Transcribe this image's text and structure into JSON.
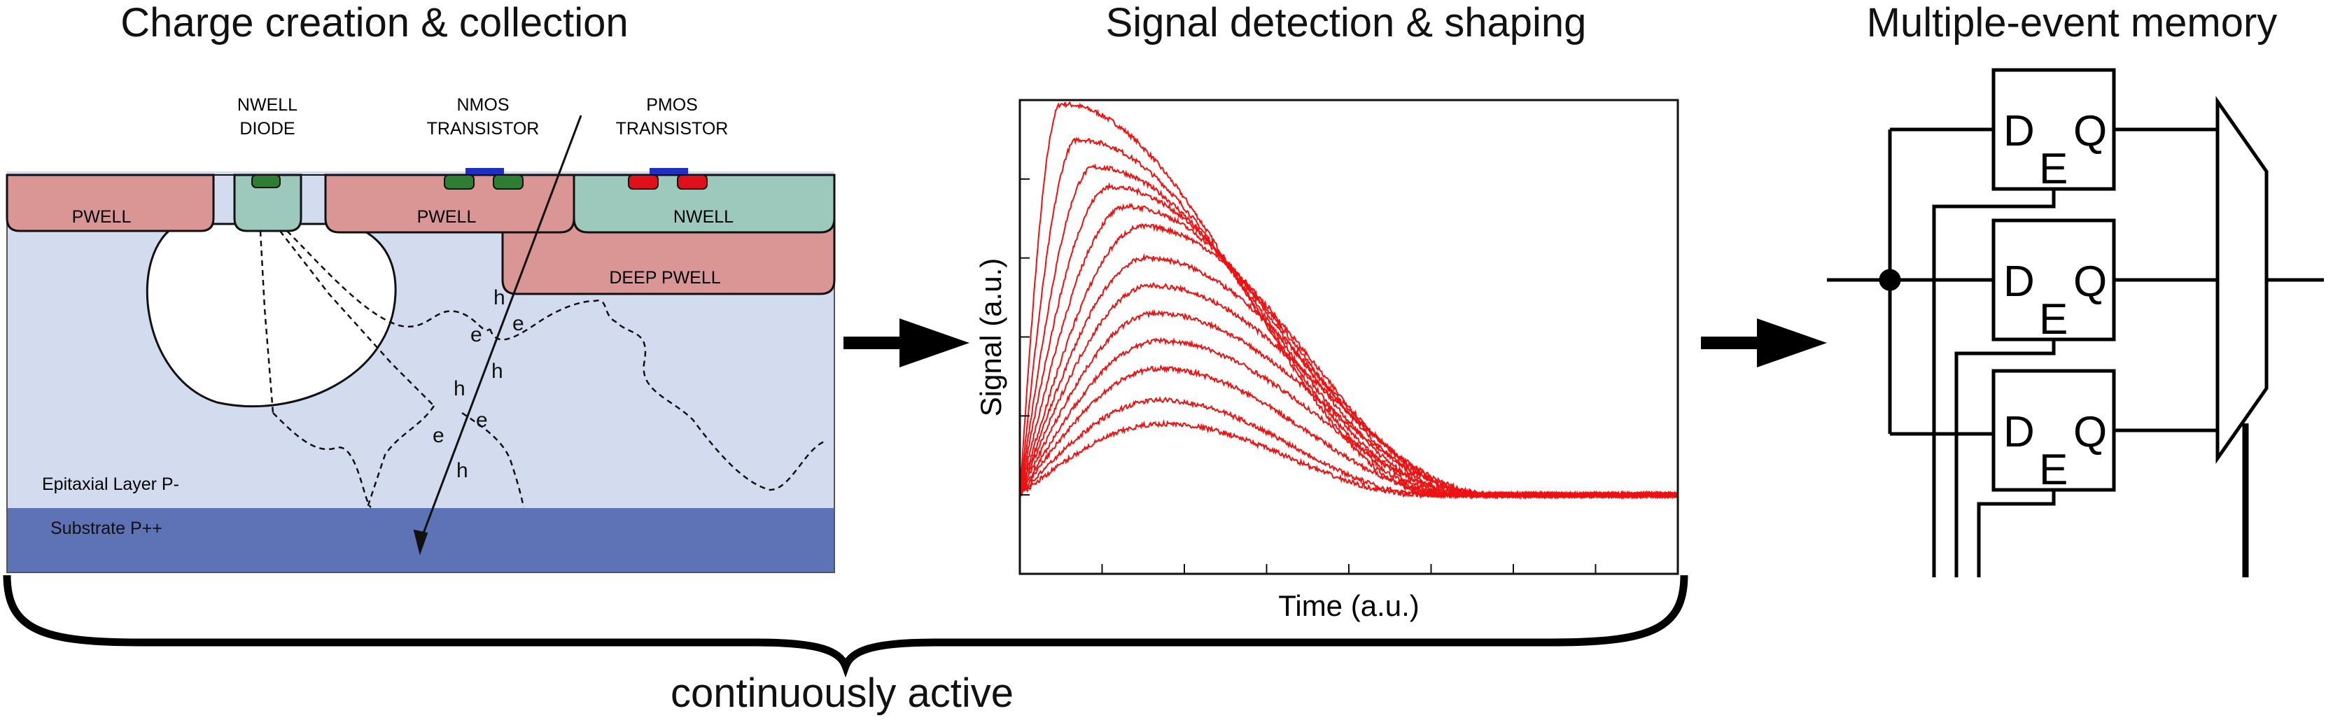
{
  "panels": {
    "charge": {
      "title": "Charge creation & collection",
      "labels": {
        "nwell_diode_1": "NWELL",
        "nwell_diode_2": "DIODE",
        "nmos_1": "NMOS",
        "nmos_2": "TRANSISTOR",
        "pmos_1": "PMOS",
        "pmos_2": "TRANSISTOR",
        "pwell_left": "PWELL",
        "pwell_mid": "PWELL",
        "nwell_right": "NWELL",
        "deep_pwell": "DEEP PWELL",
        "epi": "Epitaxial Layer P-",
        "substrate": "Substrate  P++"
      },
      "carriers": {
        "hole": "h",
        "electron": "e"
      }
    },
    "signal": {
      "title": "Signal detection & shaping",
      "ylabel": "Signal (a.u.)",
      "xlabel": "Time (a.u.)"
    },
    "memory": {
      "title": "Multiple-event memory",
      "ff_labels": {
        "d": "D",
        "q": "Q",
        "e": "E"
      }
    }
  },
  "caption": "continuously active",
  "colors": {
    "pwell": "#d99694",
    "nwell": "#9cc9bb",
    "epi": "#d3dbef",
    "substrate": "#5e72b6",
    "gate": "#1f2fbf",
    "nplus": "#2e7d32",
    "pplus": "#e0101a",
    "signal": "#ee1111"
  },
  "chart_data": {
    "type": "line",
    "title": "",
    "xlabel": "Time (a.u.)",
    "ylabel": "Signal (a.u.)",
    "xlim": [
      0,
      8
    ],
    "ylim": [
      0,
      1.2
    ],
    "series": [
      {
        "peak_time": 0.5,
        "amplitude": 1.19,
        "end_time": 5.1
      },
      {
        "peak_time": 0.7,
        "amplitude": 1.1,
        "end_time": 5.2
      },
      {
        "peak_time": 0.9,
        "amplitude": 1.03,
        "end_time": 5.3
      },
      {
        "peak_time": 1.1,
        "amplitude": 0.98,
        "end_time": 5.4
      },
      {
        "peak_time": 1.3,
        "amplitude": 0.93,
        "end_time": 5.5
      },
      {
        "peak_time": 1.5,
        "amplitude": 0.88,
        "end_time": 5.6
      },
      {
        "peak_time": 1.55,
        "amplitude": 0.8,
        "end_time": 5.7
      },
      {
        "peak_time": 1.6,
        "amplitude": 0.73,
        "end_time": 5.8
      },
      {
        "peak_time": 1.65,
        "amplitude": 0.66,
        "end_time": 5.75
      },
      {
        "peak_time": 1.7,
        "amplitude": 0.59,
        "end_time": 5.6
      },
      {
        "peak_time": 1.7,
        "amplitude": 0.52,
        "end_time": 5.3
      },
      {
        "peak_time": 1.7,
        "amplitude": 0.44,
        "end_time": 5.0
      },
      {
        "peak_time": 1.75,
        "amplitude": 0.38,
        "end_time": 4.9
      }
    ]
  }
}
